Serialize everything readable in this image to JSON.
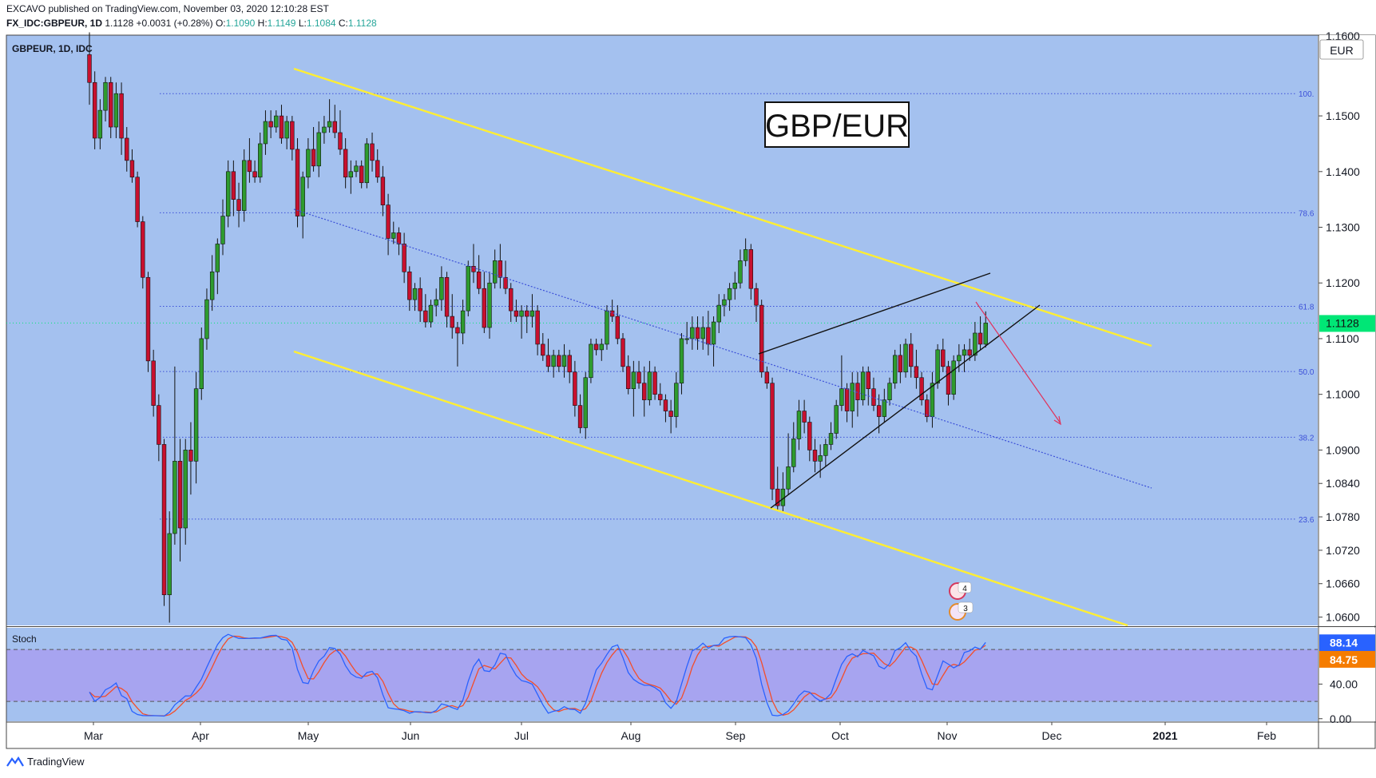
{
  "header": {
    "published_line": "EXCAVO published on TradingView.com, November 03, 2020 12:10:28 EST",
    "symbol": "FX_IDC:GBPEUR, 1D",
    "last": "1.1128",
    "change": "+0.0031 (+0.28%)",
    "open_label": "O:",
    "open": "1.1090",
    "high_label": "H:",
    "high": "1.1149",
    "low_label": "L:",
    "low": "1.1084",
    "close_label": "C:",
    "close": "1.1128"
  },
  "footer": {
    "brand": "TradingView"
  },
  "chart_data": {
    "type": "candlestick",
    "pane_label": "GBPEUR, 1D, IDC",
    "title_box": "GBP/EUR",
    "currency": "EUR",
    "price_axis": {
      "ticks": [
        "1.1500",
        "1.1400",
        "1.1300",
        "1.1200",
        "1.1100",
        "1.1000",
        "1.0900",
        "1.0840",
        "1.0780",
        "1.0720",
        "1.0660",
        "1.0600"
      ],
      "tick_values": [
        1.15,
        1.14,
        1.13,
        1.12,
        1.11,
        1.1,
        1.09,
        1.084,
        1.078,
        1.072,
        1.066,
        1.06
      ],
      "top_partial_label": "1.1600",
      "range": [
        1.0585,
        1.1645
      ],
      "current_price_label": "1.1128",
      "current_price": 1.1128,
      "current_price_color": "#00e676"
    },
    "time_axis": {
      "labels": [
        "Mar",
        "Apr",
        "May",
        "Jun",
        "Jul",
        "Aug",
        "Sep",
        "Oct",
        "Nov",
        "Dec",
        "2021",
        "Feb"
      ],
      "bold_label": "2021"
    },
    "fibonacci": [
      {
        "label": "100.",
        "price": 1.154
      },
      {
        "label": "78.6",
        "price": 1.1326
      },
      {
        "label": "61.8",
        "price": 1.1158
      },
      {
        "label": "50.0",
        "price": 1.1041
      },
      {
        "label": "38.2",
        "price": 1.0923
      },
      {
        "label": "23.6",
        "price": 1.0776
      }
    ],
    "colors": {
      "background": "#a4c1ef",
      "up": "#2e9b2e",
      "down": "#c8102e",
      "channel": "#ffee33",
      "fib": "#3c50d8",
      "stoch_k": "#2962ff",
      "stoch_d": "#f44d2a",
      "stoch_band": "#a89ff0"
    },
    "events": [
      "4",
      "3"
    ],
    "ohlc_daily": [
      {
        "o": 1.161,
        "h": 1.165,
        "l": 1.152,
        "c": 1.156
      },
      {
        "o": 1.156,
        "h": 1.158,
        "l": 1.144,
        "c": 1.146
      },
      {
        "o": 1.146,
        "h": 1.153,
        "l": 1.144,
        "c": 1.151
      },
      {
        "o": 1.151,
        "h": 1.157,
        "l": 1.149,
        "c": 1.156
      },
      {
        "o": 1.156,
        "h": 1.157,
        "l": 1.146,
        "c": 1.148
      },
      {
        "o": 1.148,
        "h": 1.156,
        "l": 1.146,
        "c": 1.154
      },
      {
        "o": 1.154,
        "h": 1.156,
        "l": 1.143,
        "c": 1.146
      },
      {
        "o": 1.146,
        "h": 1.148,
        "l": 1.14,
        "c": 1.142
      },
      {
        "o": 1.142,
        "h": 1.144,
        "l": 1.138,
        "c": 1.139
      },
      {
        "o": 1.139,
        "h": 1.14,
        "l": 1.13,
        "c": 1.131
      },
      {
        "o": 1.131,
        "h": 1.132,
        "l": 1.119,
        "c": 1.121
      },
      {
        "o": 1.121,
        "h": 1.122,
        "l": 1.104,
        "c": 1.106
      },
      {
        "o": 1.106,
        "h": 1.108,
        "l": 1.096,
        "c": 1.098
      },
      {
        "o": 1.098,
        "h": 1.1,
        "l": 1.088,
        "c": 1.091
      },
      {
        "o": 1.091,
        "h": 1.092,
        "l": 1.062,
        "c": 1.064
      },
      {
        "o": 1.064,
        "h": 1.079,
        "l": 1.059,
        "c": 1.075
      },
      {
        "o": 1.075,
        "h": 1.105,
        "l": 1.073,
        "c": 1.088
      },
      {
        "o": 1.088,
        "h": 1.092,
        "l": 1.07,
        "c": 1.076
      },
      {
        "o": 1.076,
        "h": 1.092,
        "l": 1.073,
        "c": 1.09
      },
      {
        "o": 1.09,
        "h": 1.095,
        "l": 1.082,
        "c": 1.088
      },
      {
        "o": 1.088,
        "h": 1.104,
        "l": 1.084,
        "c": 1.101
      },
      {
        "o": 1.101,
        "h": 1.112,
        "l": 1.099,
        "c": 1.11
      },
      {
        "o": 1.11,
        "h": 1.119,
        "l": 1.108,
        "c": 1.117
      },
      {
        "o": 1.117,
        "h": 1.125,
        "l": 1.115,
        "c": 1.122
      },
      {
        "o": 1.122,
        "h": 1.128,
        "l": 1.118,
        "c": 1.127
      },
      {
        "o": 1.127,
        "h": 1.135,
        "l": 1.125,
        "c": 1.132
      },
      {
        "o": 1.132,
        "h": 1.142,
        "l": 1.13,
        "c": 1.14
      },
      {
        "o": 1.14,
        "h": 1.142,
        "l": 1.132,
        "c": 1.135
      },
      {
        "o": 1.135,
        "h": 1.138,
        "l": 1.13,
        "c": 1.133
      },
      {
        "o": 1.133,
        "h": 1.144,
        "l": 1.131,
        "c": 1.142
      },
      {
        "o": 1.142,
        "h": 1.146,
        "l": 1.138,
        "c": 1.14
      },
      {
        "o": 1.14,
        "h": 1.142,
        "l": 1.138,
        "c": 1.139
      },
      {
        "o": 1.139,
        "h": 1.147,
        "l": 1.138,
        "c": 1.145
      },
      {
        "o": 1.145,
        "h": 1.151,
        "l": 1.143,
        "c": 1.149
      },
      {
        "o": 1.149,
        "h": 1.151,
        "l": 1.146,
        "c": 1.148
      },
      {
        "o": 1.148,
        "h": 1.151,
        "l": 1.147,
        "c": 1.15
      },
      {
        "o": 1.15,
        "h": 1.152,
        "l": 1.145,
        "c": 1.146
      },
      {
        "o": 1.146,
        "h": 1.15,
        "l": 1.144,
        "c": 1.149
      },
      {
        "o": 1.149,
        "h": 1.15,
        "l": 1.142,
        "c": 1.144
      },
      {
        "o": 1.144,
        "h": 1.146,
        "l": 1.13,
        "c": 1.132
      },
      {
        "o": 1.132,
        "h": 1.14,
        "l": 1.128,
        "c": 1.139
      },
      {
        "o": 1.139,
        "h": 1.146,
        "l": 1.137,
        "c": 1.144
      },
      {
        "o": 1.144,
        "h": 1.148,
        "l": 1.14,
        "c": 1.141
      },
      {
        "o": 1.141,
        "h": 1.149,
        "l": 1.139,
        "c": 1.147
      },
      {
        "o": 1.147,
        "h": 1.15,
        "l": 1.145,
        "c": 1.148
      },
      {
        "o": 1.148,
        "h": 1.153,
        "l": 1.147,
        "c": 1.149
      },
      {
        "o": 1.149,
        "h": 1.152,
        "l": 1.146,
        "c": 1.147
      },
      {
        "o": 1.147,
        "h": 1.151,
        "l": 1.143,
        "c": 1.144
      },
      {
        "o": 1.144,
        "h": 1.146,
        "l": 1.137,
        "c": 1.139
      },
      {
        "o": 1.139,
        "h": 1.142,
        "l": 1.136,
        "c": 1.14
      },
      {
        "o": 1.14,
        "h": 1.142,
        "l": 1.139,
        "c": 1.141
      },
      {
        "o": 1.141,
        "h": 1.142,
        "l": 1.137,
        "c": 1.138
      },
      {
        "o": 1.138,
        "h": 1.146,
        "l": 1.137,
        "c": 1.145
      },
      {
        "o": 1.145,
        "h": 1.147,
        "l": 1.14,
        "c": 1.142
      },
      {
        "o": 1.142,
        "h": 1.144,
        "l": 1.138,
        "c": 1.139
      },
      {
        "o": 1.139,
        "h": 1.141,
        "l": 1.132,
        "c": 1.134
      },
      {
        "o": 1.134,
        "h": 1.136,
        "l": 1.125,
        "c": 1.128
      },
      {
        "o": 1.128,
        "h": 1.131,
        "l": 1.127,
        "c": 1.129
      },
      {
        "o": 1.129,
        "h": 1.13,
        "l": 1.125,
        "c": 1.127
      },
      {
        "o": 1.127,
        "h": 1.129,
        "l": 1.12,
        "c": 1.122
      },
      {
        "o": 1.122,
        "h": 1.123,
        "l": 1.115,
        "c": 1.117
      },
      {
        "o": 1.117,
        "h": 1.12,
        "l": 1.115,
        "c": 1.119
      },
      {
        "o": 1.119,
        "h": 1.121,
        "l": 1.113,
        "c": 1.115
      },
      {
        "o": 1.115,
        "h": 1.118,
        "l": 1.112,
        "c": 1.113
      },
      {
        "o": 1.113,
        "h": 1.117,
        "l": 1.112,
        "c": 1.116
      },
      {
        "o": 1.116,
        "h": 1.119,
        "l": 1.114,
        "c": 1.117
      },
      {
        "o": 1.117,
        "h": 1.123,
        "l": 1.115,
        "c": 1.121
      },
      {
        "o": 1.121,
        "h": 1.122,
        "l": 1.112,
        "c": 1.114
      },
      {
        "o": 1.114,
        "h": 1.118,
        "l": 1.11,
        "c": 1.112
      },
      {
        "o": 1.112,
        "h": 1.113,
        "l": 1.105,
        "c": 1.111
      },
      {
        "o": 1.111,
        "h": 1.117,
        "l": 1.109,
        "c": 1.115
      },
      {
        "o": 1.115,
        "h": 1.124,
        "l": 1.114,
        "c": 1.123
      },
      {
        "o": 1.123,
        "h": 1.127,
        "l": 1.12,
        "c": 1.122
      },
      {
        "o": 1.122,
        "h": 1.125,
        "l": 1.118,
        "c": 1.119
      },
      {
        "o": 1.119,
        "h": 1.122,
        "l": 1.111,
        "c": 1.112
      },
      {
        "o": 1.112,
        "h": 1.122,
        "l": 1.11,
        "c": 1.12
      },
      {
        "o": 1.12,
        "h": 1.126,
        "l": 1.119,
        "c": 1.124
      },
      {
        "o": 1.124,
        "h": 1.127,
        "l": 1.119,
        "c": 1.121
      },
      {
        "o": 1.121,
        "h": 1.124,
        "l": 1.118,
        "c": 1.119
      },
      {
        "o": 1.119,
        "h": 1.12,
        "l": 1.113,
        "c": 1.115
      },
      {
        "o": 1.115,
        "h": 1.117,
        "l": 1.113,
        "c": 1.114
      },
      {
        "o": 1.114,
        "h": 1.116,
        "l": 1.11,
        "c": 1.115
      },
      {
        "o": 1.115,
        "h": 1.116,
        "l": 1.111,
        "c": 1.114
      },
      {
        "o": 1.114,
        "h": 1.118,
        "l": 1.112,
        "c": 1.115
      },
      {
        "o": 1.115,
        "h": 1.116,
        "l": 1.107,
        "c": 1.109
      },
      {
        "o": 1.109,
        "h": 1.111,
        "l": 1.106,
        "c": 1.107
      },
      {
        "o": 1.107,
        "h": 1.11,
        "l": 1.104,
        "c": 1.105
      },
      {
        "o": 1.105,
        "h": 1.108,
        "l": 1.103,
        "c": 1.107
      },
      {
        "o": 1.107,
        "h": 1.108,
        "l": 1.104,
        "c": 1.105
      },
      {
        "o": 1.105,
        "h": 1.109,
        "l": 1.103,
        "c": 1.107
      },
      {
        "o": 1.107,
        "h": 1.108,
        "l": 1.102,
        "c": 1.104
      },
      {
        "o": 1.104,
        "h": 1.106,
        "l": 1.096,
        "c": 1.098
      },
      {
        "o": 1.098,
        "h": 1.1,
        "l": 1.093,
        "c": 1.094
      },
      {
        "o": 1.094,
        "h": 1.104,
        "l": 1.092,
        "c": 1.103
      },
      {
        "o": 1.103,
        "h": 1.11,
        "l": 1.102,
        "c": 1.109
      },
      {
        "o": 1.109,
        "h": 1.11,
        "l": 1.107,
        "c": 1.108
      },
      {
        "o": 1.108,
        "h": 1.11,
        "l": 1.106,
        "c": 1.109
      },
      {
        "o": 1.109,
        "h": 1.116,
        "l": 1.108,
        "c": 1.115
      },
      {
        "o": 1.115,
        "h": 1.117,
        "l": 1.113,
        "c": 1.114
      },
      {
        "o": 1.114,
        "h": 1.116,
        "l": 1.109,
        "c": 1.11
      },
      {
        "o": 1.11,
        "h": 1.111,
        "l": 1.104,
        "c": 1.105
      },
      {
        "o": 1.105,
        "h": 1.107,
        "l": 1.1,
        "c": 1.101
      },
      {
        "o": 1.101,
        "h": 1.106,
        "l": 1.096,
        "c": 1.104
      },
      {
        "o": 1.104,
        "h": 1.106,
        "l": 1.101,
        "c": 1.102
      },
      {
        "o": 1.102,
        "h": 1.105,
        "l": 1.096,
        "c": 1.099
      },
      {
        "o": 1.099,
        "h": 1.106,
        "l": 1.098,
        "c": 1.104
      },
      {
        "o": 1.104,
        "h": 1.105,
        "l": 1.099,
        "c": 1.1
      },
      {
        "o": 1.1,
        "h": 1.102,
        "l": 1.098,
        "c": 1.099
      },
      {
        "o": 1.099,
        "h": 1.1,
        "l": 1.095,
        "c": 1.097
      },
      {
        "o": 1.097,
        "h": 1.099,
        "l": 1.093,
        "c": 1.096
      },
      {
        "o": 1.096,
        "h": 1.104,
        "l": 1.094,
        "c": 1.102
      },
      {
        "o": 1.102,
        "h": 1.111,
        "l": 1.1,
        "c": 1.11
      },
      {
        "o": 1.11,
        "h": 1.113,
        "l": 1.109,
        "c": 1.11
      },
      {
        "o": 1.11,
        "h": 1.114,
        "l": 1.108,
        "c": 1.112
      },
      {
        "o": 1.112,
        "h": 1.114,
        "l": 1.108,
        "c": 1.11
      },
      {
        "o": 1.11,
        "h": 1.114,
        "l": 1.108,
        "c": 1.112
      },
      {
        "o": 1.112,
        "h": 1.115,
        "l": 1.107,
        "c": 1.109
      },
      {
        "o": 1.109,
        "h": 1.114,
        "l": 1.105,
        "c": 1.113
      },
      {
        "o": 1.113,
        "h": 1.118,
        "l": 1.111,
        "c": 1.116
      },
      {
        "o": 1.116,
        "h": 1.118,
        "l": 1.114,
        "c": 1.117
      },
      {
        "o": 1.117,
        "h": 1.12,
        "l": 1.115,
        "c": 1.119
      },
      {
        "o": 1.119,
        "h": 1.122,
        "l": 1.117,
        "c": 1.12
      },
      {
        "o": 1.12,
        "h": 1.126,
        "l": 1.119,
        "c": 1.124
      },
      {
        "o": 1.124,
        "h": 1.128,
        "l": 1.123,
        "c": 1.126
      },
      {
        "o": 1.126,
        "h": 1.127,
        "l": 1.117,
        "c": 1.119
      },
      {
        "o": 1.119,
        "h": 1.12,
        "l": 1.113,
        "c": 1.116
      },
      {
        "o": 1.116,
        "h": 1.117,
        "l": 1.103,
        "c": 1.104
      },
      {
        "o": 1.104,
        "h": 1.105,
        "l": 1.101,
        "c": 1.102
      },
      {
        "o": 1.102,
        "h": 1.103,
        "l": 1.081,
        "c": 1.083
      },
      {
        "o": 1.083,
        "h": 1.087,
        "l": 1.079,
        "c": 1.08
      },
      {
        "o": 1.08,
        "h": 1.086,
        "l": 1.079,
        "c": 1.083
      },
      {
        "o": 1.083,
        "h": 1.093,
        "l": 1.082,
        "c": 1.087
      },
      {
        "o": 1.087,
        "h": 1.095,
        "l": 1.086,
        "c": 1.092
      },
      {
        "o": 1.092,
        "h": 1.099,
        "l": 1.09,
        "c": 1.097
      },
      {
        "o": 1.097,
        "h": 1.099,
        "l": 1.093,
        "c": 1.095
      },
      {
        "o": 1.095,
        "h": 1.096,
        "l": 1.088,
        "c": 1.09
      },
      {
        "o": 1.09,
        "h": 1.092,
        "l": 1.086,
        "c": 1.088
      },
      {
        "o": 1.088,
        "h": 1.091,
        "l": 1.085,
        "c": 1.089
      },
      {
        "o": 1.089,
        "h": 1.092,
        "l": 1.087,
        "c": 1.091
      },
      {
        "o": 1.091,
        "h": 1.095,
        "l": 1.09,
        "c": 1.093
      },
      {
        "o": 1.093,
        "h": 1.099,
        "l": 1.092,
        "c": 1.098
      },
      {
        "o": 1.098,
        "h": 1.107,
        "l": 1.097,
        "c": 1.101
      },
      {
        "o": 1.101,
        "h": 1.102,
        "l": 1.095,
        "c": 1.097
      },
      {
        "o": 1.097,
        "h": 1.104,
        "l": 1.094,
        "c": 1.102
      },
      {
        "o": 1.102,
        "h": 1.104,
        "l": 1.096,
        "c": 1.099
      },
      {
        "o": 1.099,
        "h": 1.105,
        "l": 1.098,
        "c": 1.104
      },
      {
        "o": 1.104,
        "h": 1.105,
        "l": 1.098,
        "c": 1.101
      },
      {
        "o": 1.101,
        "h": 1.103,
        "l": 1.097,
        "c": 1.098
      },
      {
        "o": 1.098,
        "h": 1.1,
        "l": 1.093,
        "c": 1.096
      },
      {
        "o": 1.096,
        "h": 1.101,
        "l": 1.095,
        "c": 1.099
      },
      {
        "o": 1.099,
        "h": 1.103,
        "l": 1.098,
        "c": 1.102
      },
      {
        "o": 1.102,
        "h": 1.108,
        "l": 1.101,
        "c": 1.107
      },
      {
        "o": 1.107,
        "h": 1.109,
        "l": 1.102,
        "c": 1.104
      },
      {
        "o": 1.104,
        "h": 1.11,
        "l": 1.103,
        "c": 1.109
      },
      {
        "o": 1.109,
        "h": 1.111,
        "l": 1.103,
        "c": 1.105
      },
      {
        "o": 1.105,
        "h": 1.108,
        "l": 1.101,
        "c": 1.103
      },
      {
        "o": 1.103,
        "h": 1.104,
        "l": 1.098,
        "c": 1.099
      },
      {
        "o": 1.099,
        "h": 1.1,
        "l": 1.095,
        "c": 1.096
      },
      {
        "o": 1.096,
        "h": 1.104,
        "l": 1.094,
        "c": 1.102
      },
      {
        "o": 1.102,
        "h": 1.109,
        "l": 1.101,
        "c": 1.108
      },
      {
        "o": 1.108,
        "h": 1.11,
        "l": 1.104,
        "c": 1.105
      },
      {
        "o": 1.105,
        "h": 1.106,
        "l": 1.098,
        "c": 1.1
      },
      {
        "o": 1.1,
        "h": 1.107,
        "l": 1.099,
        "c": 1.106
      },
      {
        "o": 1.106,
        "h": 1.109,
        "l": 1.104,
        "c": 1.107
      },
      {
        "o": 1.107,
        "h": 1.109,
        "l": 1.104,
        "c": 1.108
      },
      {
        "o": 1.108,
        "h": 1.11,
        "l": 1.106,
        "c": 1.107
      },
      {
        "o": 1.107,
        "h": 1.113,
        "l": 1.106,
        "c": 1.111
      },
      {
        "o": 1.111,
        "h": 1.114,
        "l": 1.108,
        "c": 1.109
      },
      {
        "o": 1.109,
        "h": 1.1149,
        "l": 1.1084,
        "c": 1.1128
      }
    ],
    "stochastic": {
      "label": "Stoch",
      "values_label": [
        "88.14",
        "84.75"
      ],
      "k": 88.14,
      "d": 84.75,
      "ticks": [
        "40.00",
        "0.00"
      ],
      "tick_values": [
        40,
        0
      ],
      "upper_band": 80,
      "lower_band": 20,
      "range": [
        -3,
        105
      ]
    }
  }
}
